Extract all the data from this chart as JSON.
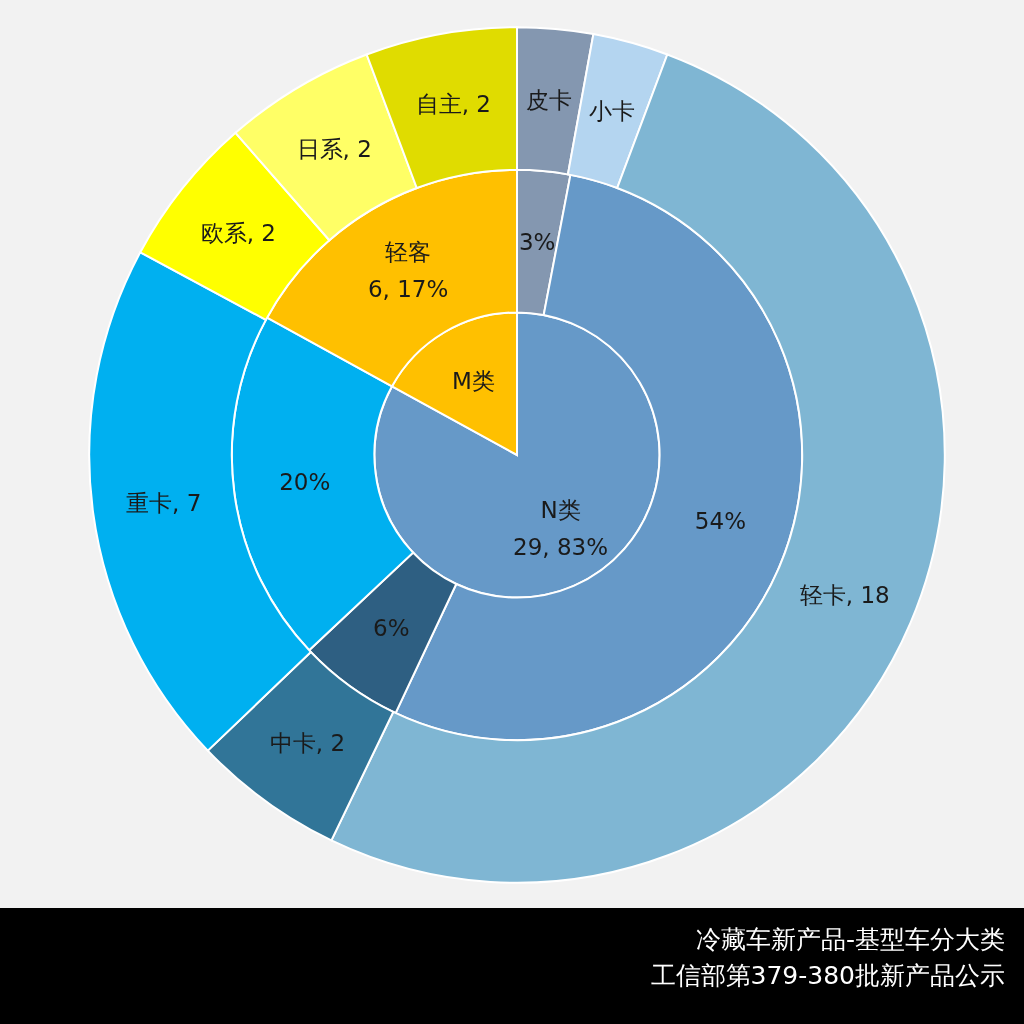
{
  "chart_data": [
    {
      "type": "pie",
      "categories": [
        "N类",
        "M类"
      ],
      "values": [
        83,
        17
      ],
      "colors": [
        "#6699c8",
        "#ffc000"
      ],
      "value_labels": [
        "29, 83%",
        null
      ],
      "annotations": [
        "冷藏车新产品-基型车分大类",
        "工信部第379-380批新产品公示"
      ]
    },
    {
      "type": "donut",
      "categories": [
        null,
        null,
        null,
        null,
        "轻客"
      ],
      "values": [
        3,
        54,
        6,
        20,
        17
      ],
      "colors": [
        "#8497b0",
        "#6699c8",
        "#2e5f82",
        "#00b0f0",
        "#ffc000"
      ],
      "value_labels": [
        "3%",
        "54%",
        "6%",
        "20%",
        "6, 17%"
      ]
    },
    {
      "type": "donut",
      "categories": [
        "皮卡",
        "小卡",
        "轻卡",
        "中卡",
        "重卡",
        "欧系",
        "日系",
        "自主"
      ],
      "values": [
        1,
        1,
        18,
        2,
        7,
        2,
        2,
        2
      ],
      "colors": [
        "#8497b0",
        "#b4d5f0",
        "#7fb6d3",
        "#317598",
        "#00b0f0",
        "#ffff00",
        "#ffff66",
        "#e0dc00"
      ],
      "value_labels": [
        null,
        null,
        "18",
        "2",
        "7",
        "2",
        "2",
        "2"
      ]
    }
  ]
}
